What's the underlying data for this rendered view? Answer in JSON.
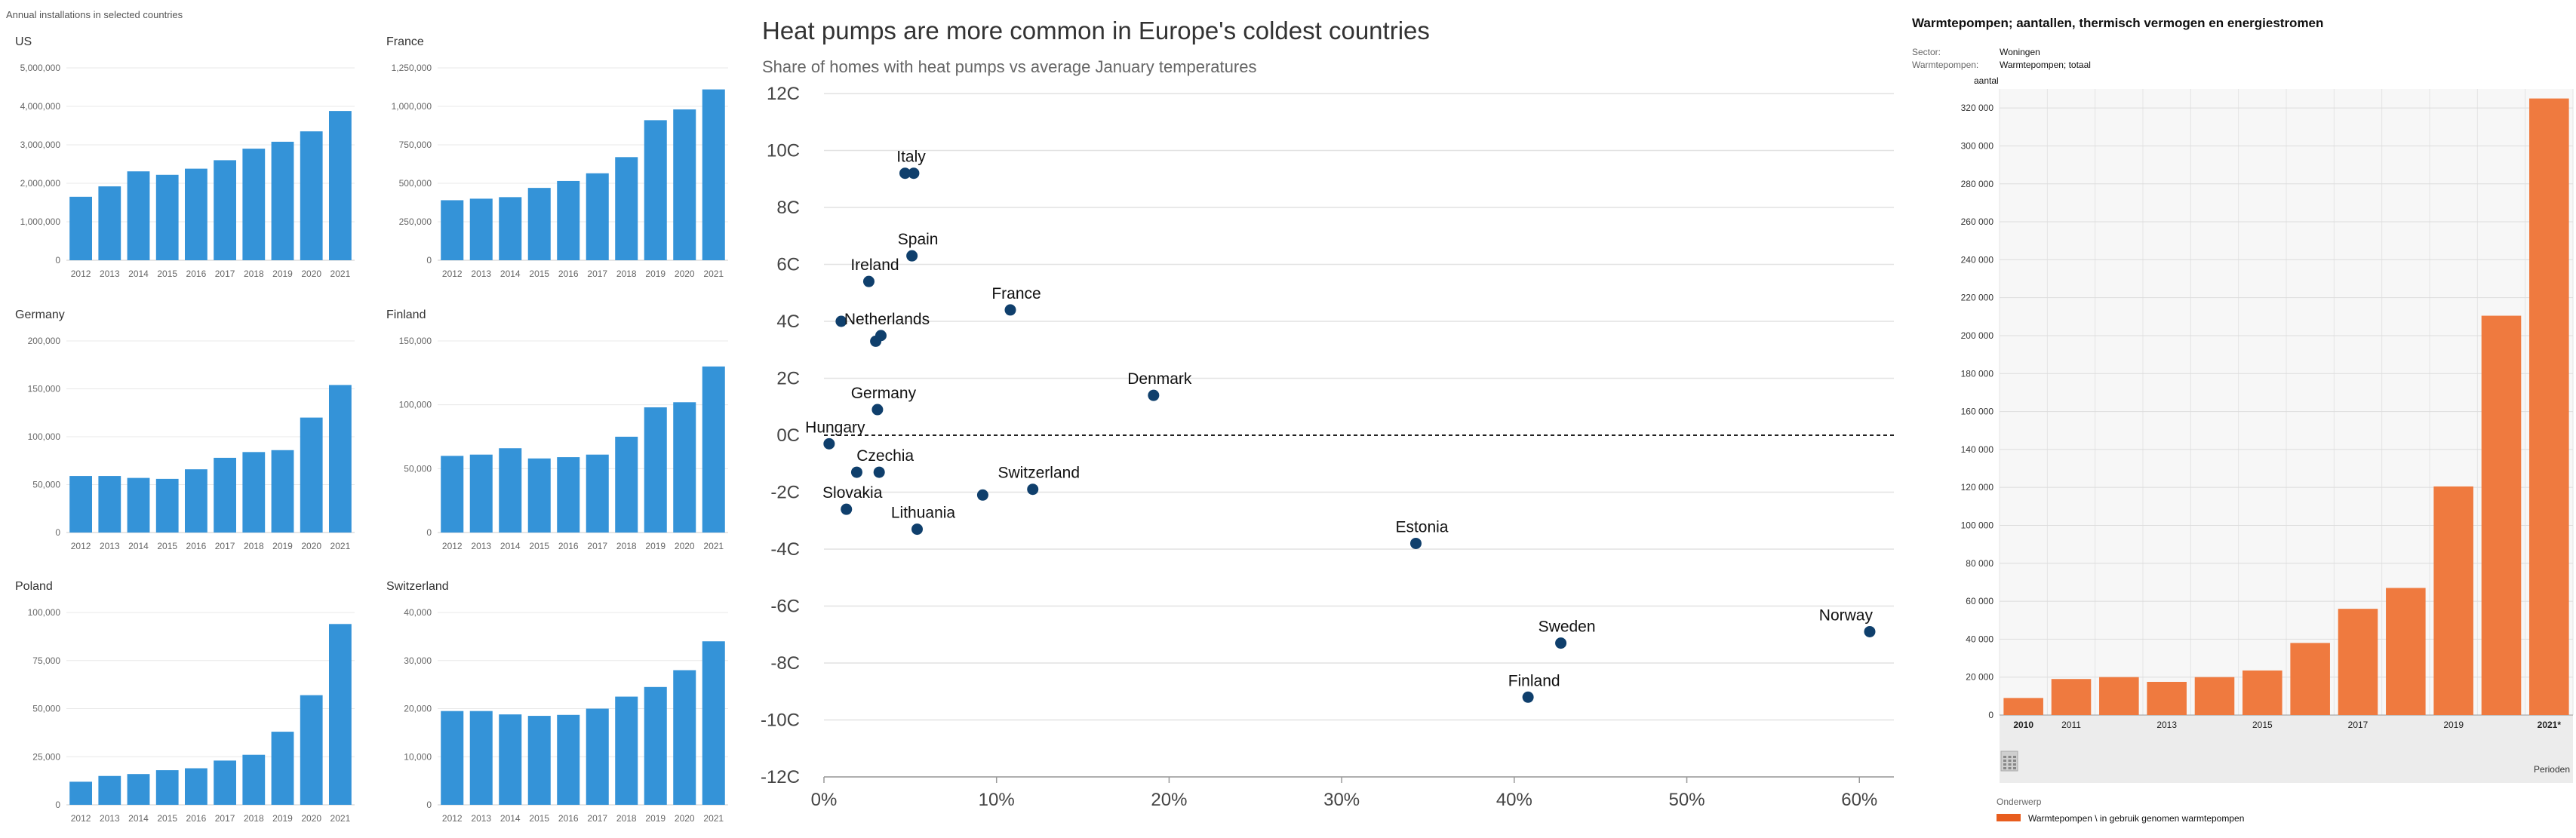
{
  "left": {
    "caption": "Annual installations in selected countries",
    "bar_color": "#3493d8",
    "years": [
      "2012",
      "2013",
      "2014",
      "2015",
      "2016",
      "2017",
      "2018",
      "2019",
      "2020",
      "2021"
    ]
  },
  "chart_data": [
    {
      "type": "bar",
      "title": "US",
      "categories": [
        "2012",
        "2013",
        "2014",
        "2015",
        "2016",
        "2017",
        "2018",
        "2019",
        "2020",
        "2021"
      ],
      "values": [
        1650000,
        1920000,
        2310000,
        2220000,
        2380000,
        2600000,
        2900000,
        3080000,
        3350000,
        3880000
      ],
      "ylim": [
        0,
        5000000
      ],
      "yticks": [
        0,
        1000000,
        2000000,
        3000000,
        4000000,
        5000000
      ],
      "ytick_labels": [
        "0",
        "1,000,000",
        "2,000,000",
        "3,000,000",
        "4,000,000",
        "5,000,000"
      ]
    },
    {
      "type": "bar",
      "title": "France",
      "categories": [
        "2012",
        "2013",
        "2014",
        "2015",
        "2016",
        "2017",
        "2018",
        "2019",
        "2020",
        "2021"
      ],
      "values": [
        390000,
        400000,
        410000,
        470000,
        515000,
        565000,
        670000,
        910000,
        980000,
        1110000
      ],
      "ylim": [
        0,
        1250000
      ],
      "yticks": [
        0,
        250000,
        500000,
        750000,
        1000000,
        1250000
      ],
      "ytick_labels": [
        "0",
        "250,000",
        "500,000",
        "750,000",
        "1,000,000",
        "1,250,000"
      ]
    },
    {
      "type": "bar",
      "title": "Germany",
      "categories": [
        "2012",
        "2013",
        "2014",
        "2015",
        "2016",
        "2017",
        "2018",
        "2019",
        "2020",
        "2021"
      ],
      "values": [
        59000,
        59000,
        57000,
        56000,
        66000,
        78000,
        84000,
        86000,
        120000,
        154000
      ],
      "ylim": [
        0,
        200000
      ],
      "yticks": [
        0,
        50000,
        100000,
        150000,
        200000
      ],
      "ytick_labels": [
        "0",
        "50,000",
        "100,000",
        "150,000",
        "200,000"
      ]
    },
    {
      "type": "bar",
      "title": "Finland",
      "categories": [
        "2012",
        "2013",
        "2014",
        "2015",
        "2016",
        "2017",
        "2018",
        "2019",
        "2020",
        "2021"
      ],
      "values": [
        60000,
        61000,
        66000,
        58000,
        59000,
        61000,
        75000,
        98000,
        102000,
        130000
      ],
      "ylim": [
        0,
        150000
      ],
      "yticks": [
        0,
        50000,
        100000,
        150000
      ],
      "ytick_labels": [
        "0",
        "50,000",
        "100,000",
        "150,000"
      ]
    },
    {
      "type": "bar",
      "title": "Poland",
      "categories": [
        "2012",
        "2013",
        "2014",
        "2015",
        "2016",
        "2017",
        "2018",
        "2019",
        "2020",
        "2021"
      ],
      "values": [
        12000,
        15000,
        16000,
        18000,
        19000,
        23000,
        26000,
        38000,
        57000,
        94000
      ],
      "ylim": [
        0,
        100000
      ],
      "yticks": [
        0,
        25000,
        50000,
        75000,
        100000
      ],
      "ytick_labels": [
        "0",
        "25,000",
        "50,000",
        "75,000",
        "100,000"
      ]
    },
    {
      "type": "bar",
      "title": "Switzerland",
      "categories": [
        "2012",
        "2013",
        "2014",
        "2015",
        "2016",
        "2017",
        "2018",
        "2019",
        "2020",
        "2021"
      ],
      "values": [
        19500,
        19500,
        18800,
        18500,
        18700,
        20000,
        22500,
        24500,
        28000,
        34000
      ],
      "ylim": [
        0,
        40000
      ],
      "yticks": [
        0,
        10000,
        20000,
        30000,
        40000
      ],
      "ytick_labels": [
        "0",
        "10,000",
        "20,000",
        "30,000",
        "40,000"
      ]
    },
    {
      "type": "scatter",
      "title": "Heat pumps are more common in Europe's coldest countries",
      "subtitle": "Share of homes with heat pumps vs average January temperatures",
      "color": "#0f3f6c",
      "xlim": [
        0,
        62
      ],
      "ylim": [
        -12,
        12
      ],
      "xticks": [
        0,
        10,
        20,
        30,
        40,
        50,
        60
      ],
      "xtick_labels": [
        "0%",
        "10%",
        "20%",
        "30%",
        "40%",
        "50%",
        "60%"
      ],
      "yticks": [
        12,
        10,
        8,
        6,
        4,
        2,
        0,
        -2,
        -4,
        -6,
        -8,
        -10,
        -12
      ],
      "ytick_labels": [
        "12C",
        "10C",
        "8C",
        "6C",
        "4C",
        "2C",
        "0C",
        "-2C",
        "-4C",
        "-6C",
        "-8C",
        "-10C",
        "-12C"
      ],
      "points": [
        {
          "x": 4.7,
          "y": 9.2,
          "label": "Italy"
        },
        {
          "x": 5.2,
          "y": 9.2,
          "label": ""
        },
        {
          "x": 5.1,
          "y": 6.3,
          "label": "Spain"
        },
        {
          "x": 2.6,
          "y": 5.4,
          "label": "Ireland"
        },
        {
          "x": 10.8,
          "y": 4.4,
          "label": "France"
        },
        {
          "x": 1.0,
          "y": 4.0,
          "label": ""
        },
        {
          "x": 3.3,
          "y": 3.5,
          "label": "Netherlands"
        },
        {
          "x": 3.0,
          "y": 3.3,
          "label": ""
        },
        {
          "x": 19.1,
          "y": 1.4,
          "label": "Denmark"
        },
        {
          "x": 3.1,
          "y": 0.9,
          "label": "Germany"
        },
        {
          "x": 0.3,
          "y": -0.3,
          "label": "Hungary"
        },
        {
          "x": 1.9,
          "y": -1.3,
          "label": ""
        },
        {
          "x": 3.2,
          "y": -1.3,
          "label": "Czechia"
        },
        {
          "x": 9.2,
          "y": -2.1,
          "label": ""
        },
        {
          "x": 12.1,
          "y": -1.9,
          "label": "Switzerland"
        },
        {
          "x": 1.3,
          "y": -2.6,
          "label": "Slovakia"
        },
        {
          "x": 5.4,
          "y": -3.3,
          "label": "Lithuania"
        },
        {
          "x": 34.3,
          "y": -3.8,
          "label": "Estonia"
        },
        {
          "x": 60.6,
          "y": -6.9,
          "label": "Norway"
        },
        {
          "x": 42.7,
          "y": -7.3,
          "label": "Sweden"
        },
        {
          "x": 40.8,
          "y": -9.2,
          "label": "Finland"
        }
      ]
    },
    {
      "type": "bar",
      "title": "Warmtepompen; aantallen, thermisch vermogen en energiestromen",
      "color": "#ef7a3f",
      "ylabel": "aantal",
      "xlabel": "Perioden",
      "categories": [
        "2010",
        "2011",
        "2012",
        "2013",
        "2014",
        "2015",
        "2016",
        "2017",
        "2018",
        "2019",
        "2020",
        "2021*"
      ],
      "x_tick_labels": [
        "2010",
        "2011",
        "",
        "2013",
        "",
        "2015",
        "",
        "2017",
        "",
        "2019",
        "",
        "2021*"
      ],
      "values": [
        9000,
        19000,
        20000,
        17500,
        20000,
        23500,
        38000,
        56000,
        67000,
        120500,
        210500,
        325000
      ],
      "ylim": [
        0,
        330000
      ],
      "yticks": [
        0,
        20000,
        40000,
        60000,
        80000,
        100000,
        120000,
        140000,
        160000,
        180000,
        200000,
        220000,
        240000,
        260000,
        280000,
        300000,
        320000
      ],
      "ytick_labels": [
        "0",
        "20 000",
        "40 000",
        "60 000",
        "80 000",
        "100 000",
        "120 000",
        "140 000",
        "160 000",
        "180 000",
        "200 000",
        "220 000",
        "240 000",
        "260 000",
        "280 000",
        "300 000",
        "320 000"
      ]
    }
  ],
  "right": {
    "title": "Warmtepompen; aantallen, thermisch vermogen en energiestromen",
    "filters": [
      {
        "label": "Sector:",
        "value": "Woningen"
      },
      {
        "label": "Warmtepompen:",
        "value": "Warmtepompen; totaal"
      }
    ],
    "legend_heading": "Onderwerp",
    "legend_label": "Warmtepompen \\ in gebruik genomen warmtepompen",
    "legend_color": "#e85d1e"
  }
}
